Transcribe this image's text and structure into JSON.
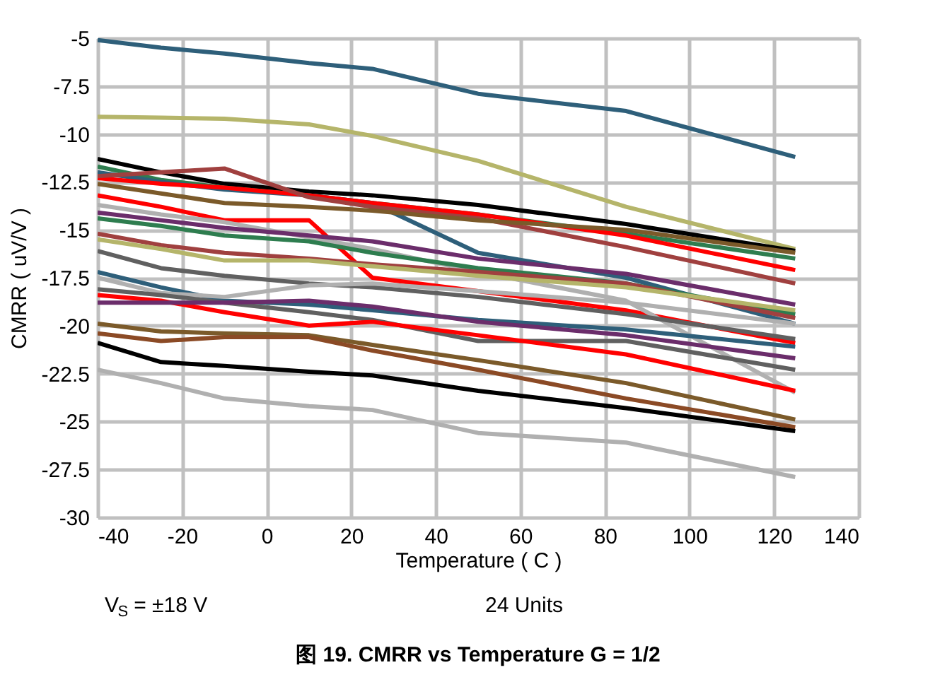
{
  "chart_data": {
    "type": "line",
    "title": "图 19. CMRR vs Temperature G = 1/2",
    "xlabel": "Temperature ( C )",
    "ylabel": "CMRR ( uV/V )",
    "annotations": [
      "V$_{S}$ = ±18 V",
      "24 Units"
    ],
    "x": [
      -40,
      -25,
      -10,
      10,
      25,
      50,
      85,
      125
    ],
    "xlim": [
      -40,
      140
    ],
    "xticks": [
      -40,
      -20,
      0,
      20,
      40,
      60,
      80,
      100,
      120,
      140
    ],
    "ylim": [
      -30,
      -5
    ],
    "yticks": [
      -30,
      -27.5,
      -25,
      -22.5,
      -20,
      -17.5,
      -15,
      -12.5,
      -10,
      -7.5,
      -5
    ],
    "grid": true,
    "legend": false,
    "marker": "none",
    "line_style": "solid",
    "series": [
      {
        "color": "#2e5f7a",
        "values": [
          -5.1,
          -5.5,
          -5.8,
          -6.3,
          -6.6,
          -7.9,
          -8.8,
          -11.2
        ]
      },
      {
        "color": "#b5b56a",
        "values": [
          -9.1,
          -9.15,
          -9.2,
          -9.5,
          -10.1,
          -11.4,
          -13.8,
          -16.0
        ]
      },
      {
        "color": "#000000",
        "values": [
          -11.3,
          -12.0,
          -12.6,
          -13.0,
          -13.2,
          -13.7,
          -14.7,
          -16.1
        ]
      },
      {
        "color": "#2e7d4f",
        "values": [
          -11.7,
          -12.4,
          -12.8,
          -13.2,
          -13.6,
          -14.2,
          -15.2,
          -16.5
        ]
      },
      {
        "color": "#2e5f7a",
        "values": [
          -12.0,
          -12.5,
          -12.9,
          -13.2,
          -13.6,
          -16.2,
          -17.5,
          -19.9
        ]
      },
      {
        "color": "#ff0000",
        "values": [
          -12.3,
          -12.6,
          -12.8,
          -13.2,
          -13.6,
          -14.2,
          -15.3,
          -17.1
        ]
      },
      {
        "color": "#a0403f",
        "values": [
          -12.2,
          -12.0,
          -11.8,
          -13.3,
          -13.8,
          -14.4,
          -15.9,
          -17.8
        ]
      },
      {
        "color": "#7b5a2a",
        "values": [
          -12.6,
          -13.1,
          -13.6,
          -13.8,
          -14.0,
          -14.5,
          -15.0,
          -16.2
        ]
      },
      {
        "color": "#ff0000",
        "values": [
          -13.2,
          -13.8,
          -14.5,
          -14.5,
          -17.5,
          -18.2,
          -19.2,
          -20.9
        ]
      },
      {
        "color": "#b0b0b0",
        "values": [
          -13.7,
          -14.2,
          -14.6,
          -15.4,
          -16.0,
          -17.2,
          -18.7,
          -23.5
        ]
      },
      {
        "color": "#6b2d6b",
        "values": [
          -14.1,
          -14.5,
          -14.9,
          -15.3,
          -15.6,
          -16.5,
          -17.3,
          -18.9
        ]
      },
      {
        "color": "#2e7d4f",
        "values": [
          -14.4,
          -14.8,
          -15.3,
          -15.6,
          -16.2,
          -17.0,
          -17.8,
          -19.4
        ]
      },
      {
        "color": "#a0403f",
        "values": [
          -15.2,
          -15.8,
          -16.2,
          -16.5,
          -16.8,
          -17.2,
          -17.8,
          -19.6
        ]
      },
      {
        "color": "#b5b56a",
        "values": [
          -15.5,
          -16.0,
          -16.6,
          -16.6,
          -16.9,
          -17.4,
          -18.0,
          -19.2
        ]
      },
      {
        "color": "#606060",
        "values": [
          -16.1,
          -17.0,
          -17.4,
          -17.8,
          -18.0,
          -18.5,
          -19.4,
          -20.7
        ]
      },
      {
        "color": "#2e5f7a",
        "values": [
          -17.2,
          -18.0,
          -18.7,
          -18.9,
          -19.2,
          -19.7,
          -20.2,
          -21.1
        ]
      },
      {
        "color": "#b0b0b0",
        "values": [
          -17.5,
          -18.3,
          -18.5,
          -17.9,
          -17.8,
          -18.2,
          -18.8,
          -19.9
        ]
      },
      {
        "color": "#606060",
        "values": [
          -18.1,
          -18.4,
          -18.8,
          -19.3,
          -19.7,
          -20.8,
          -20.8,
          -22.3
        ]
      },
      {
        "color": "#ff0000",
        "values": [
          -18.4,
          -18.7,
          -19.3,
          -20.0,
          -19.8,
          -20.5,
          -21.5,
          -23.4
        ]
      },
      {
        "color": "#6b2d6b",
        "values": [
          -18.8,
          -18.8,
          -18.8,
          -18.7,
          -19.0,
          -19.8,
          -20.5,
          -21.7
        ]
      },
      {
        "color": "#7b5a2a",
        "values": [
          -19.9,
          -20.3,
          -20.4,
          -20.5,
          -21.0,
          -21.8,
          -23.0,
          -24.9
        ]
      },
      {
        "color": "#8b4a25",
        "values": [
          -20.4,
          -20.8,
          -20.6,
          -20.6,
          -21.3,
          -22.3,
          -23.8,
          -25.3
        ]
      },
      {
        "color": "#000000",
        "values": [
          -20.9,
          -21.9,
          -22.1,
          -22.4,
          -22.6,
          -23.4,
          -24.3,
          -25.5
        ]
      },
      {
        "color": "#b0b0b0",
        "values": [
          -22.3,
          -23.0,
          -23.8,
          -24.2,
          -24.4,
          -25.6,
          -26.1,
          -27.9
        ]
      }
    ]
  }
}
